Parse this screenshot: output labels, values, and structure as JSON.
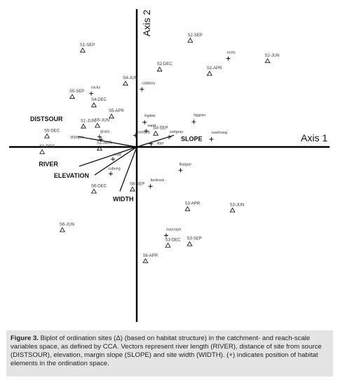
{
  "chart_data": {
    "type": "scatter",
    "axes": {
      "x_label": "Axis 1",
      "y_label": "Axis 2"
    },
    "sites": [
      {
        "label": "S1-SEP",
        "x": -4.33,
        "y": 7.76
      },
      {
        "label": "S2-SEP",
        "x": 4.29,
        "y": 8.55
      },
      {
        "label": "S2-JUN",
        "x": 10.48,
        "y": 6.91
      },
      {
        "label": "S2-DEC",
        "x": 1.83,
        "y": 6.23
      },
      {
        "label": "S2-APR",
        "x": 5.83,
        "y": 5.89
      },
      {
        "label": "S4-JUN",
        "x": -0.9,
        "y": 5.1
      },
      {
        "label": "S5-SEP",
        "x": -5.17,
        "y": 4.04
      },
      {
        "label": "S4-DEC",
        "x": -3.43,
        "y": 3.36
      },
      {
        "label": "S5-APR",
        "x": -2.02,
        "y": 2.46
      },
      {
        "label": "S1-JUN",
        "x": -4.27,
        "y": 1.66
      },
      {
        "label": "S5-JUN",
        "x": -3.15,
        "y": 1.72
      },
      {
        "label": "S4-SEP",
        "x": 1.52,
        "y": 1.09
      },
      {
        "label": "S5-DEC",
        "x": -7.19,
        "y": 0.87
      },
      {
        "label": "S1-DEC",
        "x": -7.58,
        "y": -0.4
      },
      {
        "label": "S1-APR",
        "x": -2.98,
        "y": -0.12
      },
      {
        "label": "S6-DEC",
        "x": -3.43,
        "y": -3.56
      },
      {
        "label": "S6-SEP",
        "x": -0.34,
        "y": -3.39
      },
      {
        "label": "S3-APR",
        "x": 4.07,
        "y": -4.97
      },
      {
        "label": "S3-JUN",
        "x": 7.67,
        "y": -5.08
      },
      {
        "label": "S6-JUN",
        "x": -5.96,
        "y": -6.66
      },
      {
        "label": "S3-DEC",
        "x": 2.5,
        "y": -7.9
      },
      {
        "label": "S3-SEP",
        "x": 4.24,
        "y": -7.79
      },
      {
        "label": "S6-APR",
        "x": 0.7,
        "y": -9.15
      }
    ],
    "habitat_elements": [
      {
        "label": "roots",
        "x": 7.33,
        "y": 7.1
      },
      {
        "label": "cobbles",
        "x": 0.41,
        "y": 4.63
      },
      {
        "label": "rocks",
        "x": -3.65,
        "y": 4.29
      },
      {
        "label": "lrgdeb",
        "x": 0.63,
        "y": 1.98
      },
      {
        "label": "lrggrav",
        "x": 4.57,
        "y": 2.02
      },
      {
        "label": "sand",
        "x": 0.75,
        "y": 1.28
      },
      {
        "label": "smldeb",
        "x": -0.11,
        "y": 0.93
      },
      {
        "label": "grass",
        "x": -2.98,
        "y": 0.82
      },
      {
        "label": "smlgrav",
        "x": 2.59,
        "y": 0.79
      },
      {
        "label": "attalgae",
        "x": -2.86,
        "y": 0.6
      },
      {
        "label": "overhveg",
        "x": 5.98,
        "y": 0.62
      },
      {
        "label": "litter",
        "x": 1.15,
        "y": 0.25
      },
      {
        "label": "mud",
        "x": -1.91,
        "y": -0.97
      },
      {
        "label": "filalgae",
        "x": 3.51,
        "y": -1.87
      },
      {
        "label": "subveg",
        "x": -2.08,
        "y": -2.15
      },
      {
        "label": "bedrock",
        "x": 1.1,
        "y": -3.16
      },
      {
        "label": "macroph",
        "x": 2.36,
        "y": -7.1
      }
    ],
    "vectors": [
      {
        "label": "DISTSOUR",
        "x": -4.72,
        "y": 0.84
      },
      {
        "label": "SLOPE",
        "x": 2.98,
        "y": 0.94
      },
      {
        "label": "RIVER",
        "x": -4.61,
        "y": -1.55
      },
      {
        "label": "ELEVATION",
        "x": -3.37,
        "y": -2.25
      },
      {
        "label": "WIDTH",
        "x": -1.35,
        "y": -3.56
      }
    ]
  },
  "caption": {
    "fig_label": "Figure 3.",
    "text": "Biplot of ordination sites (Δ) (based on habitat structure) in the catchment- and reach-scale variables space, as defined by CCA. Vectors represent river length (RIVER), distance of site from source (DISTSOUR), elevation, margin slope (SLOPE) and site width (WIDTH). (+) indicates position of habitat elements in the ordination space."
  }
}
